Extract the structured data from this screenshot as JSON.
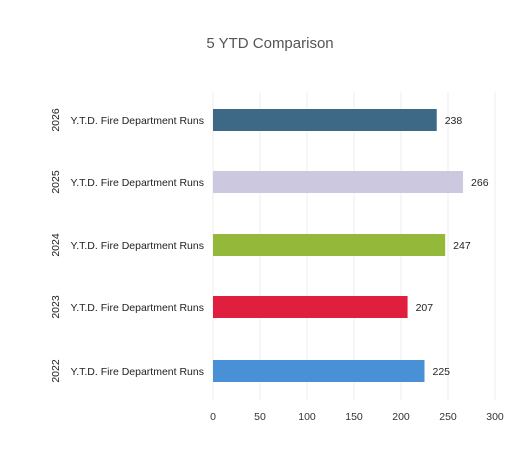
{
  "chart_data": {
    "type": "bar",
    "orientation": "horizontal",
    "title": "5 YTD Comparison",
    "xlabel": "",
    "ylabel": "",
    "xlim": [
      0,
      300
    ],
    "xticks": [
      0,
      50,
      100,
      150,
      200,
      250,
      300
    ],
    "grid": true,
    "legend": "none",
    "categories": [
      {
        "year": "2026",
        "label": "Y.T.D. Fire Department Runs",
        "value": 238,
        "color": "#3d6886"
      },
      {
        "year": "2025",
        "label": "Y.T.D. Fire Department Runs",
        "value": 266,
        "color": "#ccc8df"
      },
      {
        "year": "2024",
        "label": "Y.T.D. Fire Department Runs",
        "value": 247,
        "color": "#94b83a"
      },
      {
        "year": "2023",
        "label": "Y.T.D. Fire Department Runs",
        "value": 207,
        "color": "#e01e3e"
      },
      {
        "year": "2022",
        "label": "Y.T.D. Fire Department Runs",
        "value": 225,
        "color": "#4a90d6"
      }
    ]
  }
}
